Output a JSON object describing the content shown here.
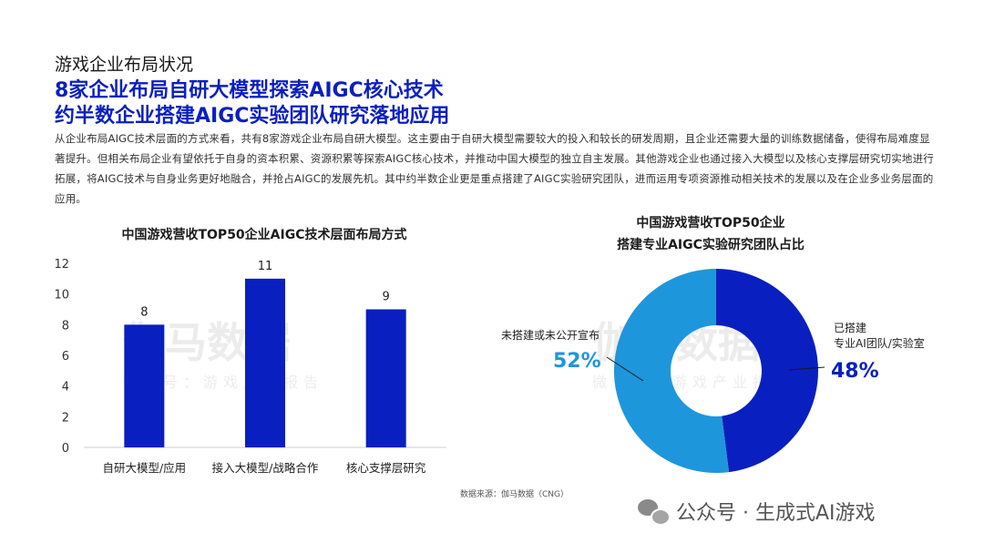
{
  "page": {
    "section_title": "游戏企业布局状况",
    "headline_line1": "8家企业布局自研大模型探索AIGC核心技术",
    "headline_line2": "约半数企业搭建AIGC实验团队研究落地应用",
    "body": "从企业布局AIGC技术层面的方式来看，共有8家游戏企业布局自研大模型。这主要由于自研大模型需要较大的投入和较长的研发周期，且企业还需要大量的训练数据储备，使得布局难度显著提升。但相关布局企业有望依托于自身的资本积累、资源积累等探索AIGC核心技术，并推动中国大模型的独立自主发展。其他游戏企业也通过接入大模型以及核心支撑层研究切实地进行拓展，将AIGC技术与自身业务更好地融合，并抢占AIGC的发展先机。其中约半数企业更是重点搭建了AIGC实验研究团队，进而运用专项资源推动相关技术的发展以及在企业多业务层面的应用。",
    "source": "数据来源：伽马数据（CNG）",
    "wechat_account": "公众号 · 生成式AI游戏",
    "bg_watermark_main": "伽马数据",
    "bg_watermark_sub": "微信号：游戏产业报告"
  },
  "colors": {
    "accent": "#0a1fbf",
    "bar": "#0a1fbf",
    "pie_built": "#0a1fbf",
    "pie_not_built": "#1e96dc"
  },
  "chart_data": [
    {
      "type": "bar",
      "title": "中国游戏营收TOP50企业AIGC技术层面布局方式",
      "categories": [
        "自研大模型/应用",
        "接入大模型/战略合作",
        "核心支撑层研究"
      ],
      "values": [
        8,
        11,
        9
      ],
      "ylim": [
        0,
        12
      ],
      "yticks": [
        0,
        2,
        4,
        6,
        8,
        10,
        12
      ],
      "grid": false,
      "xlabel": "",
      "ylabel": ""
    },
    {
      "type": "pie",
      "title_line1": "中国游戏营收TOP50企业",
      "title_line2": "搭建专业AIGC实验研究团队占比",
      "donut": true,
      "slices": [
        {
          "label_line1": "已搭建",
          "label_line2": "专业AI团队/实验室",
          "value": 48,
          "value_label": "48%"
        },
        {
          "label_line1": "未搭建或未公开宣布",
          "label_line2": "",
          "value": 52,
          "value_label": "52%"
        }
      ]
    }
  ]
}
